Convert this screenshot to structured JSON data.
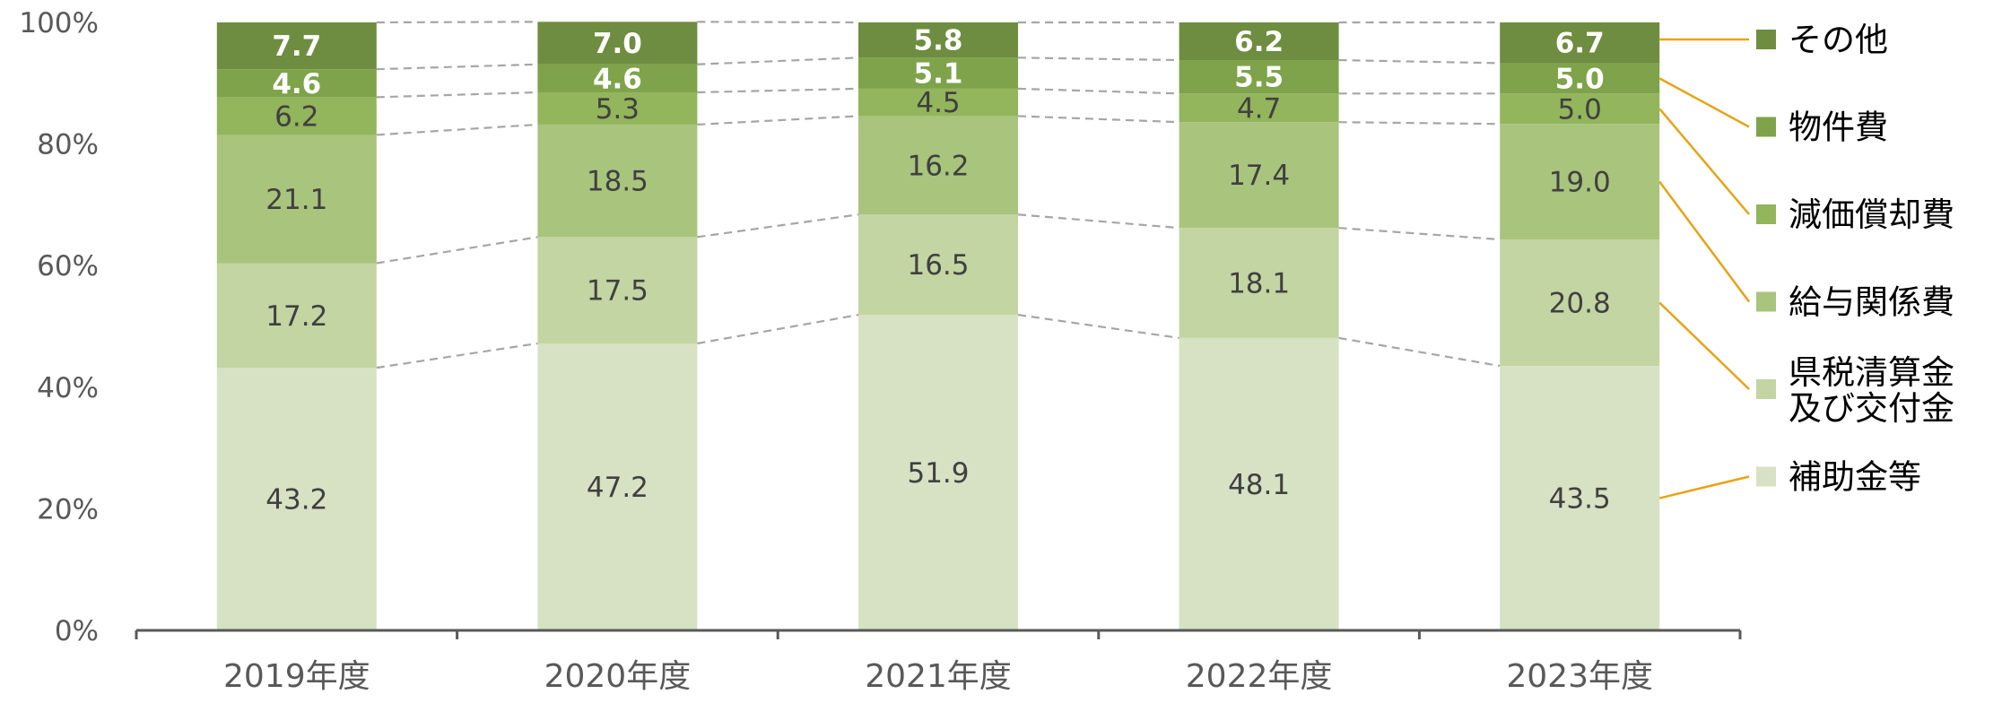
{
  "chart_data": {
    "type": "bar",
    "stacked": true,
    "percent": true,
    "title": "",
    "xlabel": "",
    "ylabel": "",
    "ylim": [
      0,
      100
    ],
    "yticks": [
      "0%",
      "20%",
      "40%",
      "60%",
      "80%",
      "100%"
    ],
    "categories": [
      "2019年度",
      "2020年度",
      "2021年度",
      "2022年度",
      "2023年度"
    ],
    "series": [
      {
        "name": "補助金等",
        "color": "#d6e2c3",
        "label_color": "#404040",
        "values": [
          43.2,
          47.2,
          51.9,
          48.1,
          43.5
        ]
      },
      {
        "name": "県税清算金\n及び交付金",
        "color": "#c2d5a2",
        "label_color": "#404040",
        "values": [
          17.2,
          17.5,
          16.5,
          18.1,
          20.8
        ]
      },
      {
        "name": "給与関係費",
        "color": "#a9c47d",
        "label_color": "#404040",
        "values": [
          21.1,
          18.5,
          16.2,
          17.4,
          19.0
        ]
      },
      {
        "name": "減価償却費",
        "color": "#93b55b",
        "label_color": "#404040",
        "values": [
          6.2,
          5.3,
          4.5,
          4.7,
          5.0
        ]
      },
      {
        "name": "物件費",
        "color": "#7ea34a",
        "label_color": "#ffffff",
        "values": [
          4.6,
          4.6,
          5.1,
          5.5,
          5.0
        ]
      },
      {
        "name": "その他",
        "color": "#6f8d40",
        "label_color": "#ffffff",
        "values": [
          7.7,
          7.0,
          5.8,
          6.2,
          6.7
        ]
      }
    ],
    "connector_lines": true,
    "grid": false,
    "legend_position": "right"
  }
}
